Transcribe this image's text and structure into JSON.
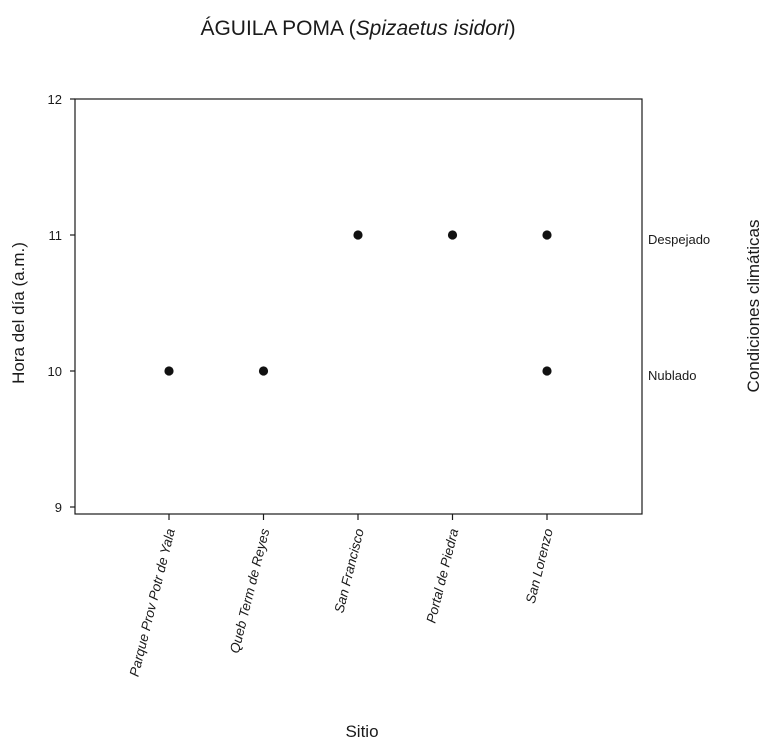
{
  "chart_data": {
    "type": "scatter",
    "title": {
      "prefix": "ÁGUILA POMA (",
      "species": "Spizaetus  isidori",
      "suffix": ")"
    },
    "xlabel": "Sitio",
    "ylabel": "Hora del día (a.m.)",
    "ylabel_right": "Condiciones climáticas",
    "categories": [
      "Parque Prov Potr de Yala",
      "Queb Term de Reyes",
      "San Francisco",
      "Portal de Piedra",
      "San Lorenzo"
    ],
    "yticks": [
      "9",
      "10",
      "11",
      "12"
    ],
    "ylim": [
      9,
      12
    ],
    "right_labels": [
      {
        "y": 11,
        "text": "Despejado"
      },
      {
        "y": 10,
        "text": "Nublado"
      }
    ],
    "points": [
      {
        "category": "Parque Prov Potr de Yala",
        "y": 10
      },
      {
        "category": "Queb Term de Reyes",
        "y": 10
      },
      {
        "category": "San Francisco",
        "y": 11
      },
      {
        "category": "Portal de Piedra",
        "y": 11
      },
      {
        "category": "San Lorenzo",
        "y": 11
      },
      {
        "category": "San Lorenzo",
        "y": 10
      }
    ],
    "marker_color": "#111111",
    "grid": false,
    "legend": "none"
  }
}
